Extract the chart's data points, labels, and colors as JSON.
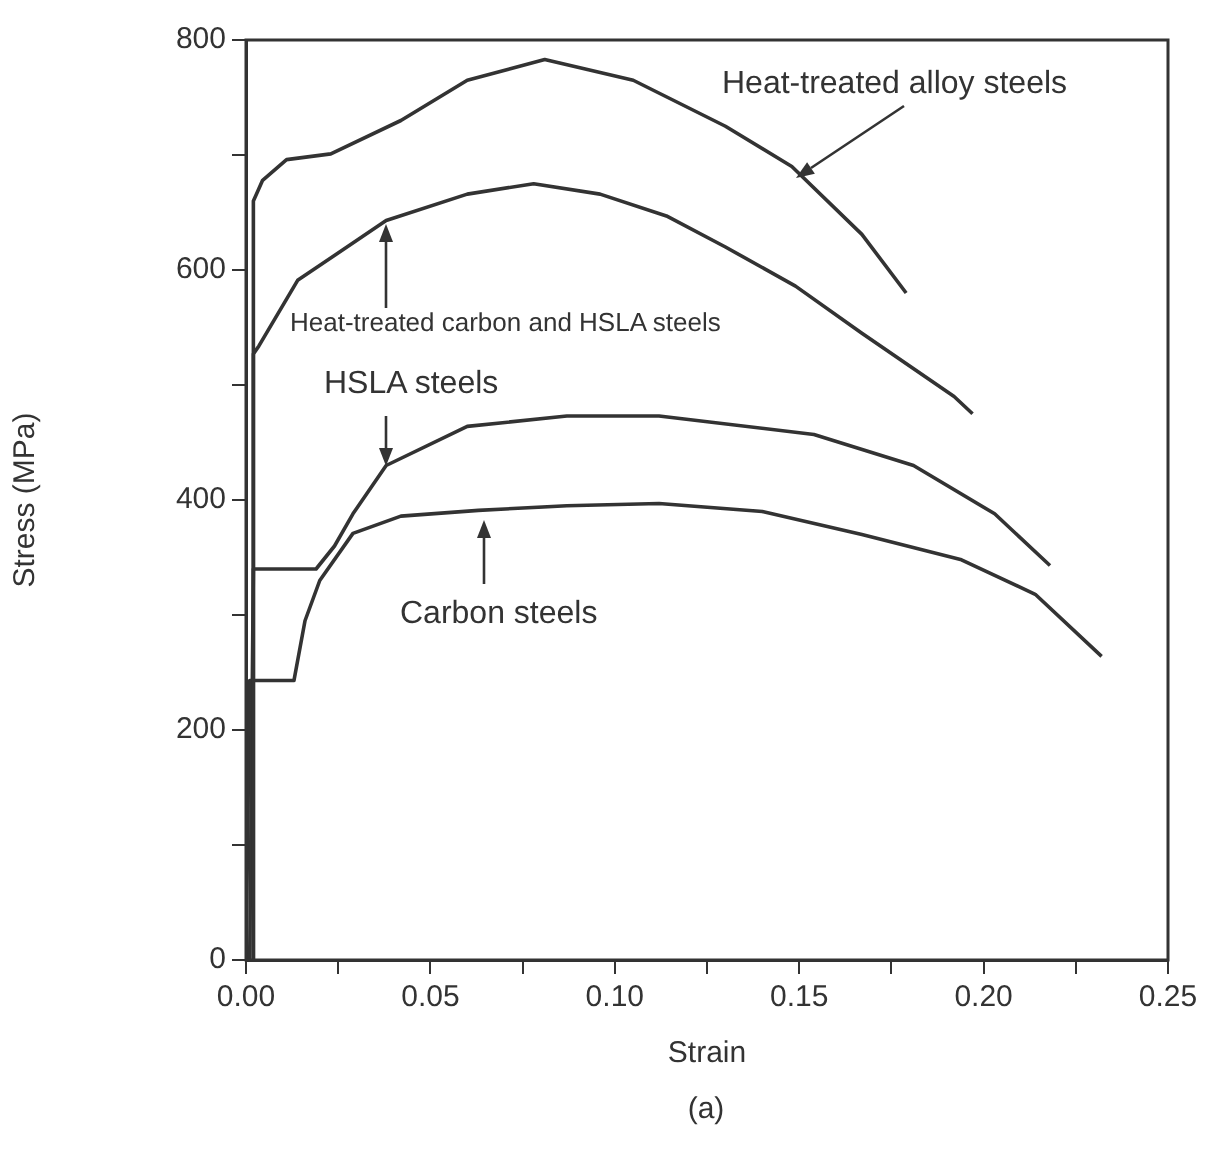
{
  "chart_data": {
    "type": "line",
    "xlabel": "Strain",
    "ylabel": "Stress (MPa)",
    "xlim": [
      0,
      0.25
    ],
    "ylim": [
      0,
      800
    ],
    "xticks": [
      {
        "value": 0,
        "label": "0.00"
      },
      {
        "value": 0.025,
        "label": null
      },
      {
        "value": 0.05,
        "label": "0.05"
      },
      {
        "value": 0.075,
        "label": null
      },
      {
        "value": 0.1,
        "label": "0.10"
      },
      {
        "value": 0.125,
        "label": null
      },
      {
        "value": 0.15,
        "label": "0.15"
      },
      {
        "value": 0.175,
        "label": null
      },
      {
        "value": 0.2,
        "label": "0.20"
      },
      {
        "value": 0.225,
        "label": null
      },
      {
        "value": 0.25,
        "label": "0.25"
      }
    ],
    "yticks": [
      0,
      {
        "value": 100,
        "label": null
      },
      200,
      {
        "value": 300,
        "label": null
      },
      400,
      {
        "value": 500,
        "label": null
      },
      600,
      {
        "value": 700,
        "label": null
      },
      800
    ],
    "series": [
      {
        "name": "Heat-treated alloy steels",
        "color": "#333333",
        "x": [
          0.002,
          0.002,
          0.0045,
          0.011,
          0.023,
          0.042,
          0.06,
          0.081,
          0.105,
          0.13,
          0.148,
          0.167,
          0.179
        ],
        "values": [
          0,
          660,
          678,
          696,
          701,
          730,
          765,
          783,
          765,
          725,
          690,
          631,
          580
        ]
      },
      {
        "name": "Heat-treated carbon and HSLA steels",
        "color": "#333333",
        "x": [
          0.002,
          0.002,
          0.0035,
          0.014,
          0.038,
          0.06,
          0.078,
          0.096,
          0.114,
          0.13,
          0.149,
          0.167,
          0.192,
          0.197
        ],
        "values": [
          0,
          527,
          534,
          591,
          643,
          666,
          675,
          666,
          647,
          620,
          586,
          545,
          490,
          475
        ]
      },
      {
        "name": "HSLA steels",
        "color": "#333333",
        "x": [
          0.001,
          0.002,
          0.019,
          0.024,
          0.029,
          0.038,
          0.06,
          0.087,
          0.112,
          0.154,
          0.181,
          0.203,
          0.218
        ],
        "values": [
          0,
          340,
          340,
          360,
          388,
          430,
          464,
          473,
          473,
          457,
          430,
          388,
          343
        ]
      },
      {
        "name": "Carbon steels",
        "color": "#333333",
        "x": [
          0,
          0.001,
          0.013,
          0.016,
          0.02,
          0.029,
          0.042,
          0.063,
          0.087,
          0.112,
          0.14,
          0.167,
          0.194,
          0.214,
          0.232
        ],
        "values": [
          0,
          243,
          243,
          295,
          330,
          371,
          386,
          391,
          395,
          397,
          390,
          370,
          348,
          318,
          264
        ]
      }
    ],
    "annotations": [
      "(a)"
    ]
  }
}
